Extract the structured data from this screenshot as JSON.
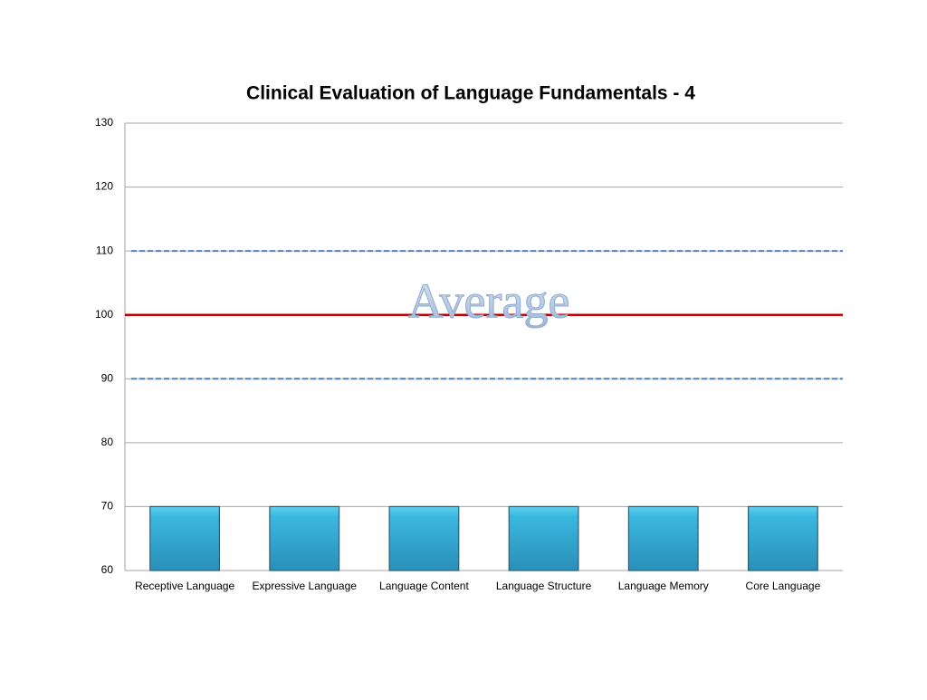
{
  "chart_data": {
    "type": "bar",
    "title": "Clinical Evaluation of Language Fundamentals - 4",
    "categories": [
      "Receptive Language",
      "Expressive Language",
      "Language Content",
      "Language Structure",
      "Language Memory",
      "Core Language"
    ],
    "values": [
      70,
      70,
      70,
      70,
      70,
      70
    ],
    "color": "#31b0d8",
    "ylim": [
      60,
      130
    ],
    "yticks": [
      60,
      70,
      80,
      90,
      100,
      110,
      120,
      130
    ],
    "grid": true,
    "reference_lines": [
      {
        "value": 90,
        "style": "dashed",
        "color": "#4f81bd"
      },
      {
        "value": 100,
        "style": "solid",
        "color": "#c00000"
      },
      {
        "value": 110,
        "style": "dashed",
        "color": "#4f81bd"
      }
    ],
    "annotation": "Average"
  }
}
